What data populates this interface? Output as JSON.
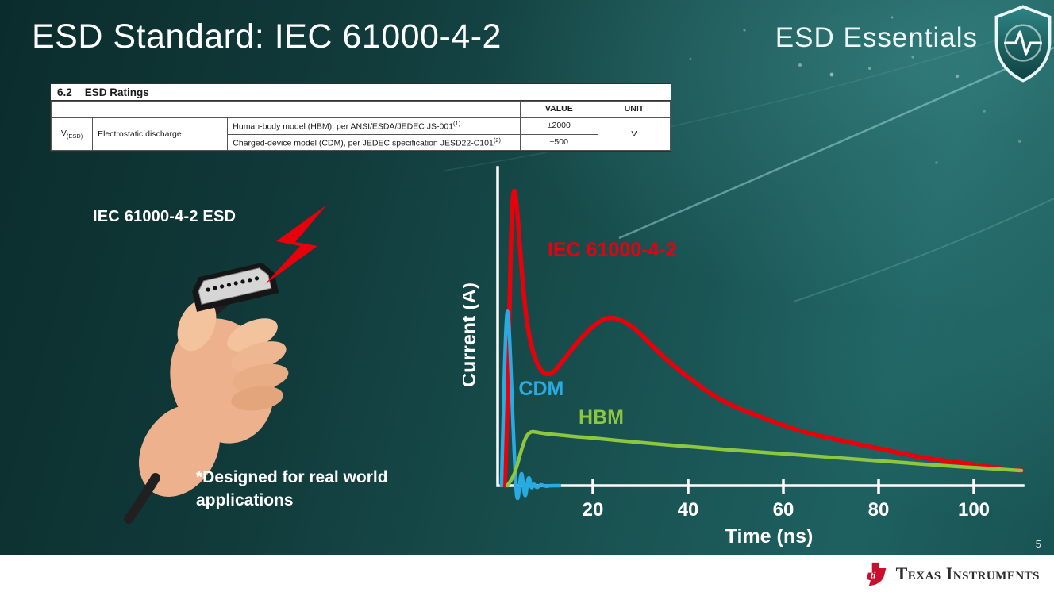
{
  "slide": {
    "title": "ESD Standard: IEC 61000-4-2",
    "brand": "ESD Essentials",
    "page_number": "5",
    "footer_brand": "Texas Instruments"
  },
  "ratings_table": {
    "section_number": "6.2",
    "section_title": "ESD Ratings",
    "headers": {
      "value": "VALUE",
      "unit": "UNIT"
    },
    "param_symbol_base": "V",
    "param_symbol_sub": "(ESD)",
    "param_name": "Electrostatic discharge",
    "rows": [
      {
        "description": "Human-body model (HBM), per ANSI/ESDA/JEDEC JS-001",
        "description_sup": "(1)",
        "value": "±2000"
      },
      {
        "description": "Charged-device model (CDM), per JEDEC specification JESD22-C101",
        "description_sup": "(2)",
        "value": "±500"
      }
    ],
    "unit_value": "V"
  },
  "left_panel": {
    "caption": "IEC 61000-4-2 ESD",
    "note_line1": "*Designed for real world",
    "note_line2": "applications"
  },
  "chart_data": {
    "type": "line",
    "title": "",
    "xlabel": "Time (ns)",
    "ylabel": "Current (A)",
    "xlim": [
      0,
      110
    ],
    "x_ticks": [
      20,
      40,
      60,
      80,
      100
    ],
    "y_axis_tick_labels": [],
    "y_units": "normalized; no y tick labels shown, IEC peak = 1.0",
    "grid": false,
    "legend": "inline curve labels",
    "series": [
      {
        "name": "IEC 61000-4-2",
        "color": "#e8000b",
        "points": [
          [
            1.5,
            0
          ],
          [
            2,
            0.2
          ],
          [
            2.5,
            0.62
          ],
          [
            3,
            0.92
          ],
          [
            3.5,
            1
          ],
          [
            4.2,
            0.9
          ],
          [
            5,
            0.72
          ],
          [
            6,
            0.55
          ],
          [
            7.5,
            0.43
          ],
          [
            9.5,
            0.37
          ],
          [
            11.5,
            0.37
          ],
          [
            14,
            0.42
          ],
          [
            17,
            0.48
          ],
          [
            20,
            0.53
          ],
          [
            23,
            0.56
          ],
          [
            26,
            0.55
          ],
          [
            29,
            0.52
          ],
          [
            32,
            0.47
          ],
          [
            36,
            0.41
          ],
          [
            40,
            0.36
          ],
          [
            45,
            0.3
          ],
          [
            50,
            0.26
          ],
          [
            55,
            0.23
          ],
          [
            60,
            0.2
          ],
          [
            66,
            0.17
          ],
          [
            72,
            0.15
          ],
          [
            78,
            0.13
          ],
          [
            84,
            0.11
          ],
          [
            90,
            0.09
          ],
          [
            96,
            0.08
          ],
          [
            102,
            0.065
          ],
          [
            107,
            0.055
          ],
          [
            110,
            0.05
          ]
        ]
      },
      {
        "name": "CDM",
        "color": "#29abe2",
        "points": [
          [
            0.8,
            0
          ],
          [
            1.2,
            0.25
          ],
          [
            1.7,
            0.52
          ],
          [
            2.1,
            0.6
          ],
          [
            2.5,
            0.5
          ],
          [
            3,
            0.3
          ],
          [
            3.5,
            0.1
          ],
          [
            3.9,
            -0.03
          ],
          [
            4.3,
            -0.05
          ],
          [
            4.7,
            0.02
          ],
          [
            5.1,
            0.05
          ],
          [
            5.5,
            -0.02
          ],
          [
            5.9,
            -0.04
          ],
          [
            6.3,
            0.02
          ],
          [
            6.7,
            0.03
          ],
          [
            7.1,
            -0.015
          ],
          [
            7.6,
            0.01
          ],
          [
            8.2,
            -0.01
          ],
          [
            9,
            0.005
          ],
          [
            10,
            -0.003
          ],
          [
            11,
            0
          ],
          [
            13,
            0
          ]
        ]
      },
      {
        "name": "HBM",
        "color": "#8dc63f",
        "points": [
          [
            2,
            0
          ],
          [
            3,
            0.02
          ],
          [
            4,
            0.06
          ],
          [
            5,
            0.12
          ],
          [
            6,
            0.165
          ],
          [
            7,
            0.18
          ],
          [
            8,
            0.178
          ],
          [
            10,
            0.172
          ],
          [
            13,
            0.168
          ],
          [
            16,
            0.163
          ],
          [
            20,
            0.158
          ],
          [
            25,
            0.15
          ],
          [
            30,
            0.143
          ],
          [
            35,
            0.136
          ],
          [
            40,
            0.13
          ],
          [
            46,
            0.122
          ],
          [
            52,
            0.115
          ],
          [
            58,
            0.108
          ],
          [
            64,
            0.101
          ],
          [
            70,
            0.094
          ],
          [
            76,
            0.087
          ],
          [
            82,
            0.08
          ],
          [
            88,
            0.073
          ],
          [
            94,
            0.066
          ],
          [
            100,
            0.06
          ],
          [
            105,
            0.055
          ],
          [
            110,
            0.05
          ]
        ]
      }
    ],
    "curve_labels": [
      {
        "text": "IEC 61000-4-2",
        "x": 10.5,
        "y": 0.76,
        "color": "#e8000b"
      },
      {
        "text": "CDM",
        "x": 4.4,
        "y": 0.3,
        "color": "#29abe2"
      },
      {
        "text": "HBM",
        "x": 17,
        "y": 0.205,
        "color": "#8dc63f"
      }
    ]
  },
  "colors": {
    "background_dark": "#0b2c2c",
    "background_light": "#1e6060",
    "accent_red": "#e8000b",
    "accent_cyan": "#29abe2",
    "accent_green": "#8dc63f",
    "footer_bg": "#ffffff",
    "ti_red": "#c8102e"
  }
}
